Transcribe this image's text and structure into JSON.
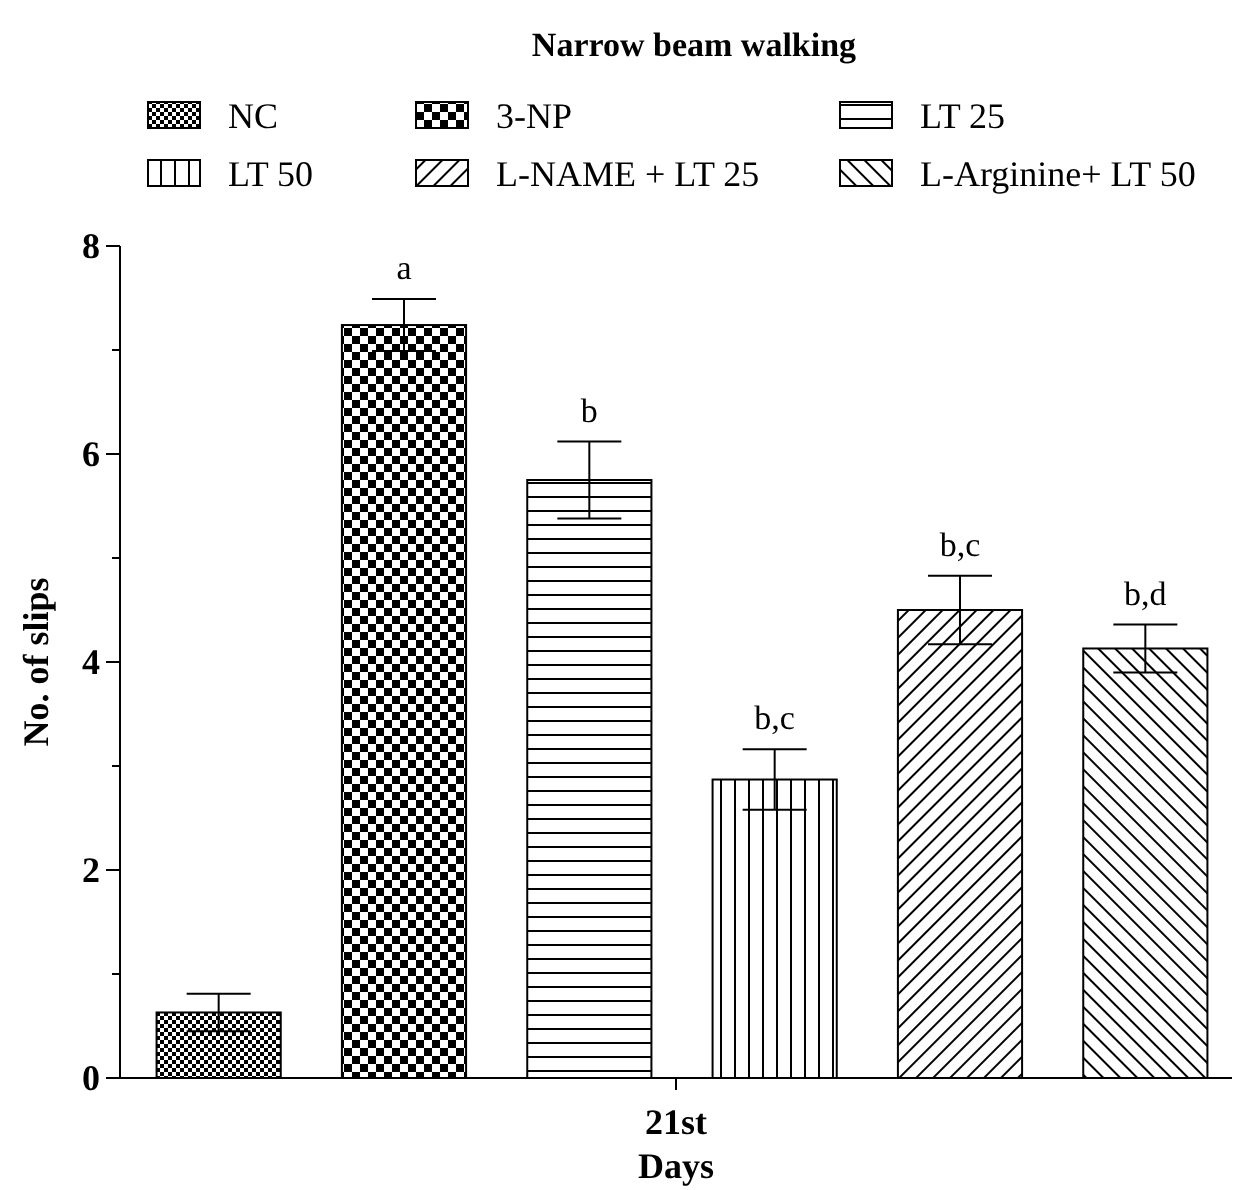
{
  "chart_data": {
    "type": "bar",
    "title": "Narrow beam walking",
    "xlabel": "Days",
    "ylabel": "No. of slips",
    "categories": [
      "21st"
    ],
    "series": [
      {
        "name": "NC",
        "color": "#000000",
        "values": [
          0.63
        ],
        "errors": [
          0.18
        ],
        "value_labels": [
          null
        ]
      },
      {
        "name": "3-NP",
        "color": "#000000",
        "values": [
          7.24
        ],
        "errors": [
          0.25
        ],
        "value_labels": [
          "a"
        ]
      },
      {
        "name": "LT 25",
        "color": "#000000",
        "values": [
          5.75
        ],
        "errors": [
          0.37
        ],
        "value_labels": [
          "b"
        ]
      },
      {
        "name": "LT 50",
        "color": "#000000",
        "values": [
          2.87
        ],
        "errors": [
          0.29
        ],
        "value_labels": [
          "b,c"
        ]
      },
      {
        "name": "L-NAME + LT 25",
        "color": "#000000",
        "values": [
          4.5
        ],
        "errors": [
          0.33
        ],
        "value_labels": [
          "b,c"
        ]
      },
      {
        "name": "L-Arginine+ LT 50",
        "color": "#000000",
        "values": [
          4.13
        ],
        "errors": [
          0.23
        ],
        "value_labels": [
          "b,d"
        ]
      }
    ],
    "ylim": [
      0,
      8
    ],
    "yticks": [
      0,
      {
        "value": 1,
        "label": null
      },
      2,
      {
        "value": 3,
        "label": null
      },
      4,
      {
        "value": 5,
        "label": null
      },
      6,
      {
        "value": 7,
        "label": null
      },
      8
    ],
    "grid": false,
    "legend": "top"
  }
}
